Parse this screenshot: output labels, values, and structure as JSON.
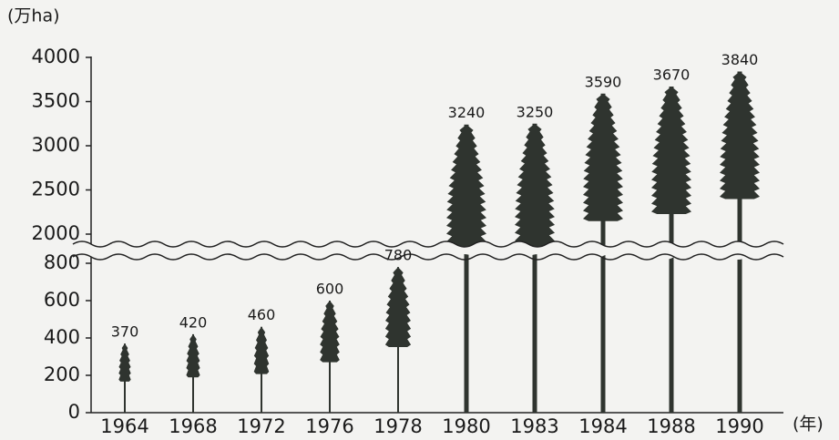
{
  "chart_data": {
    "type": "bar",
    "y_label": "(万ha)",
    "x_label": "(年)",
    "categories": [
      "1964",
      "1968",
      "1972",
      "1976",
      "1978",
      "1980",
      "1983",
      "1984",
      "1988",
      "1990"
    ],
    "values": [
      370,
      420,
      460,
      600,
      780,
      3240,
      3250,
      3590,
      3670,
      3840
    ],
    "color": "#2f342f",
    "axis_segments": [
      {
        "ylim": [
          0,
          800
        ],
        "yticks": [
          0,
          200,
          400,
          600,
          800
        ]
      },
      {
        "ylim": [
          2000,
          4000
        ],
        "yticks": [
          2000,
          2500,
          3000,
          3500,
          4000
        ]
      }
    ]
  }
}
